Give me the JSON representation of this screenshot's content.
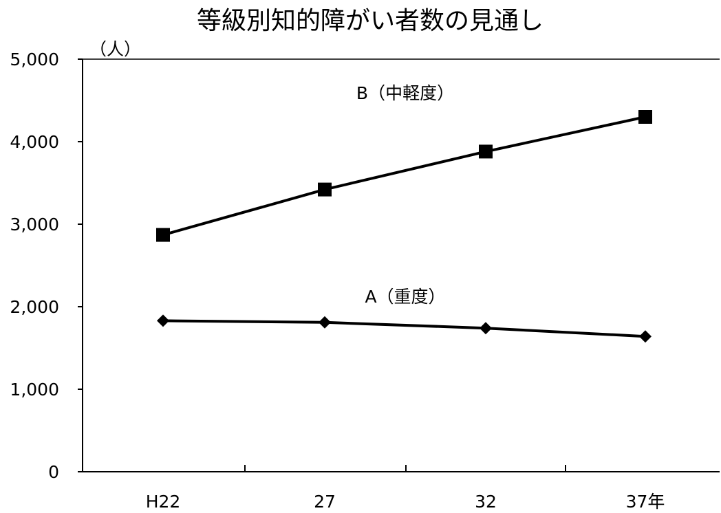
{
  "chart_data": {
    "type": "line",
    "title": "等級別知的障がい者数の見通し",
    "ylabel": "（人）",
    "xlabel": "",
    "categories": [
      "H22",
      "27",
      "32",
      "37年"
    ],
    "ylim": [
      0,
      5000
    ],
    "yticks": [
      0,
      1000,
      2000,
      3000,
      4000,
      5000
    ],
    "ytick_labels": [
      "0",
      "1,000",
      "2,000",
      "3,000",
      "4,000",
      "5,000"
    ],
    "grid": false,
    "series": [
      {
        "name": "B（中軽度）",
        "marker": "square",
        "color": "#000000",
        "values": [
          2870,
          3420,
          3880,
          4300
        ]
      },
      {
        "name": "A（重度）",
        "marker": "diamond",
        "color": "#000000",
        "values": [
          1830,
          1810,
          1740,
          1640
        ]
      }
    ]
  }
}
